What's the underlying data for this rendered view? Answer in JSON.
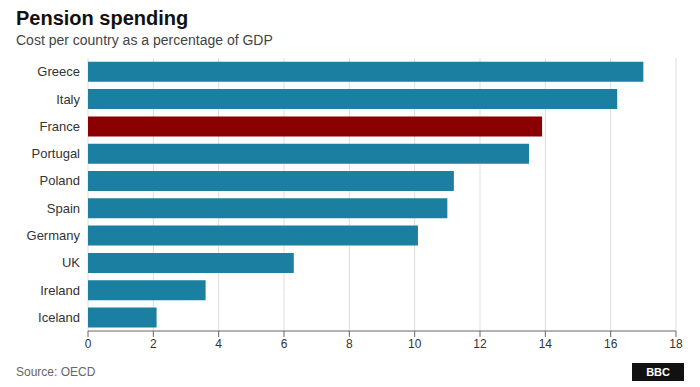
{
  "chart_data": {
    "type": "bar",
    "orientation": "horizontal",
    "title": "Pension spending",
    "subtitle": "Cost per country as a percentage of GDP",
    "source": "Source: OECD",
    "annotations": [
      "BBC"
    ],
    "categories": [
      "Greece",
      "Italy",
      "France",
      "Portugal",
      "Poland",
      "Spain",
      "Germany",
      "UK",
      "Ireland",
      "Iceland"
    ],
    "values": [
      17.0,
      16.2,
      13.9,
      13.5,
      11.2,
      11.0,
      10.1,
      6.3,
      3.6,
      2.1
    ],
    "colors": [
      "#1a7fa0",
      "#1a7fa0",
      "#8b0000",
      "#1a7fa0",
      "#1a7fa0",
      "#1a7fa0",
      "#1a7fa0",
      "#1a7fa0",
      "#1a7fa0",
      "#1a7fa0"
    ],
    "xlim": [
      0,
      18
    ],
    "xticks": [
      0,
      2,
      4,
      6,
      8,
      10,
      12,
      14,
      16,
      18
    ],
    "grid": true
  }
}
